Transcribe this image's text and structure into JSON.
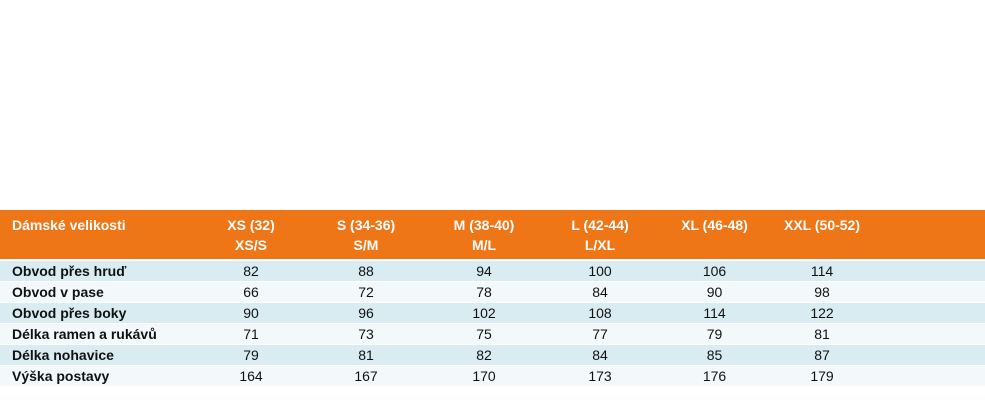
{
  "table": {
    "header": {
      "label": "Dámské velikosti",
      "columns": [
        {
          "line1": "XS (32)",
          "line2": "XS/S"
        },
        {
          "line1": "S (34-36)",
          "line2": "S/M"
        },
        {
          "line1": "M (38-40)",
          "line2": "M/L"
        },
        {
          "line1": "L (42-44)",
          "line2": "L/XL"
        },
        {
          "line1": "XL (46-48)",
          "line2": ""
        },
        {
          "line1": "XXL (50-52)",
          "line2": ""
        }
      ]
    },
    "rows": [
      {
        "label": "Obvod přes hruď",
        "values": [
          "82",
          "88",
          "94",
          "100",
          "106",
          "114"
        ]
      },
      {
        "label": "Obvod v pase",
        "values": [
          "66",
          "72",
          "78",
          "84",
          "90",
          "98"
        ]
      },
      {
        "label": "Obvod přes boky",
        "values": [
          "90",
          "96",
          "102",
          "108",
          "114",
          "122"
        ]
      },
      {
        "label": "Délka ramen a rukávů",
        "values": [
          "71",
          "73",
          "75",
          "77",
          "79",
          "81"
        ]
      },
      {
        "label": "Délka nohavice",
        "values": [
          "79",
          "81",
          "82",
          "84",
          "85",
          "87"
        ]
      },
      {
        "label": "Výška postavy",
        "values": [
          "164",
          "167",
          "170",
          "173",
          "176",
          "179"
        ]
      }
    ]
  },
  "colors": {
    "header_bg": "#ef7617",
    "row_shaded": "#d9ecf2",
    "row_plain": "#f3f9fb"
  }
}
